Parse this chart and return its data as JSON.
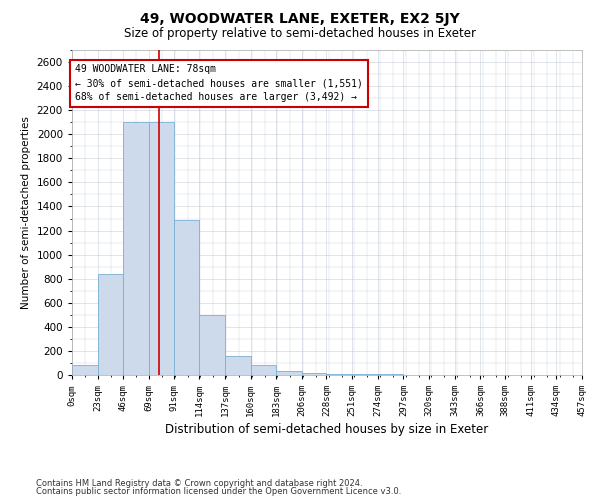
{
  "title": "49, WOODWATER LANE, EXETER, EX2 5JY",
  "subtitle": "Size of property relative to semi-detached houses in Exeter",
  "xlabel": "Distribution of semi-detached houses by size in Exeter",
  "ylabel": "Number of semi-detached properties",
  "footnote1": "Contains HM Land Registry data © Crown copyright and database right 2024.",
  "footnote2": "Contains public sector information licensed under the Open Government Licence v3.0.",
  "property_size": 78,
  "annotation_title": "49 WOODWATER LANE: 78sqm",
  "annotation_line1": "← 30% of semi-detached houses are smaller (1,551)",
  "annotation_line2": "68% of semi-detached houses are larger (3,492) →",
  "bar_color": "#ccdaeb",
  "bar_edge_color": "#7aafd4",
  "line_color": "#cc0000",
  "annotation_box_color": "#cc0000",
  "background_color": "#ffffff",
  "grid_color": "#c8d0dc",
  "ylim": [
    0,
    2700
  ],
  "bin_edges": [
    0,
    23,
    46,
    69,
    91,
    114,
    137,
    160,
    183,
    206,
    228,
    251,
    274,
    297,
    320,
    343,
    366,
    388,
    411,
    434,
    457
  ],
  "bin_labels": [
    "0sqm",
    "23sqm",
    "46sqm",
    "69sqm",
    "91sqm",
    "114sqm",
    "137sqm",
    "160sqm",
    "183sqm",
    "206sqm",
    "228sqm",
    "251sqm",
    "274sqm",
    "297sqm",
    "320sqm",
    "343sqm",
    "366sqm",
    "388sqm",
    "411sqm",
    "434sqm",
    "457sqm"
  ],
  "bar_heights": [
    80,
    840,
    2100,
    2100,
    1290,
    500,
    160,
    80,
    35,
    20,
    10,
    8,
    5,
    3,
    2,
    1,
    1,
    1,
    1,
    0
  ],
  "yticks": [
    0,
    200,
    400,
    600,
    800,
    1000,
    1200,
    1400,
    1600,
    1800,
    2000,
    2200,
    2400,
    2600
  ]
}
